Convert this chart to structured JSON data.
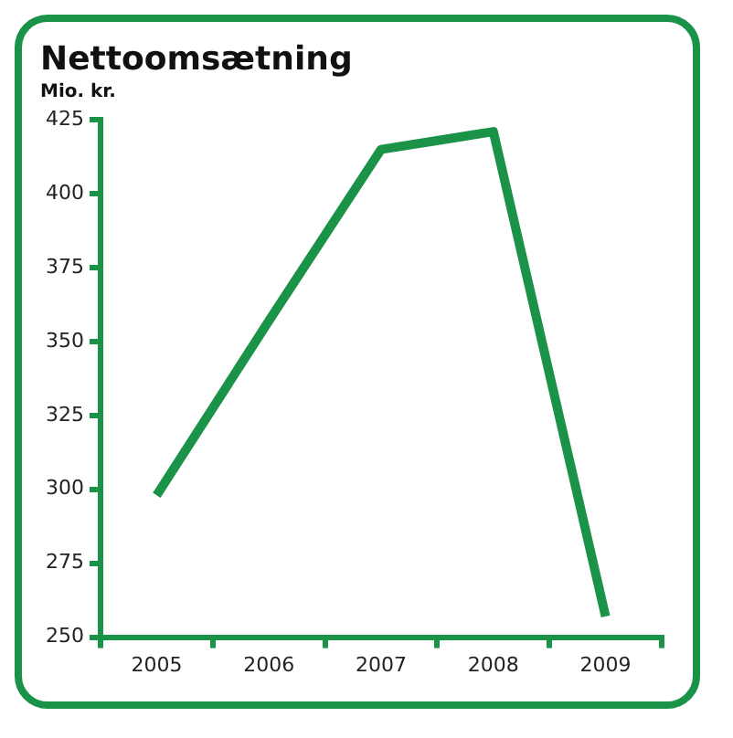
{
  "chart_data": {
    "type": "line",
    "title": "Nettoomsætning",
    "ylabel": "Mio. kr.",
    "categories": [
      "2005",
      "2006",
      "2007",
      "2008",
      "2009"
    ],
    "series": [
      {
        "color": "#1a9248",
        "values": [
          298,
          357,
          415,
          421,
          257
        ]
      }
    ],
    "ylim": [
      250,
      425
    ],
    "yticks": [
      250,
      275,
      300,
      325,
      350,
      375,
      400,
      425
    ],
    "grid": false,
    "legend": false,
    "marker": "none"
  }
}
